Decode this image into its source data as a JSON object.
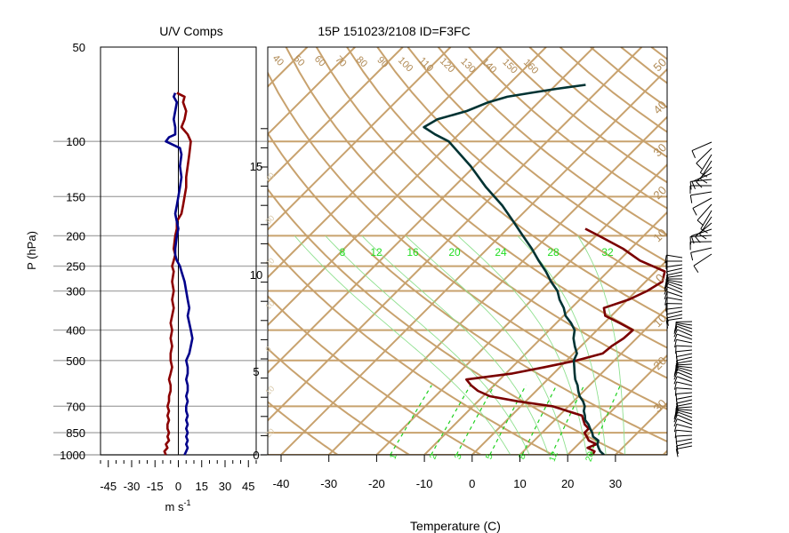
{
  "chart_data": [
    {
      "type": "line",
      "title": "U/V Comps",
      "ylabel": "P (hPa)",
      "xlabel": "m s",
      "xlabel_superscript": "-1",
      "y_scale": "log",
      "ylim": [
        1000,
        50
      ],
      "xlim": [
        -50,
        50
      ],
      "y_ticks": [
        50,
        100,
        150,
        200,
        250,
        300,
        400,
        500,
        700,
        850,
        1000
      ],
      "x_ticks": [
        -45,
        -30,
        -15,
        0,
        15,
        30,
        45
      ],
      "grid": "horizontal lines at labeled pressure levels",
      "series": [
        {
          "color": "#8b0000",
          "points": [
            [
              1000,
              -8
            ],
            [
              975,
              -9
            ],
            [
              950,
              -7
            ],
            [
              925,
              -8
            ],
            [
              900,
              -6
            ],
            [
              875,
              -7
            ],
            [
              850,
              -6
            ],
            [
              825,
              -7
            ],
            [
              800,
              -7
            ],
            [
              775,
              -6
            ],
            [
              750,
              -7
            ],
            [
              725,
              -6
            ],
            [
              700,
              -7
            ],
            [
              675,
              -6
            ],
            [
              650,
              -6
            ],
            [
              625,
              -5
            ],
            [
              600,
              -5
            ],
            [
              575,
              -6
            ],
            [
              550,
              -5
            ],
            [
              525,
              -4
            ],
            [
              500,
              -5
            ],
            [
              475,
              -5
            ],
            [
              450,
              -4
            ],
            [
              425,
              -5
            ],
            [
              400,
              -4
            ],
            [
              380,
              -5
            ],
            [
              360,
              -4
            ],
            [
              340,
              -3
            ],
            [
              320,
              -4
            ],
            [
              300,
              -3
            ],
            [
              280,
              -4
            ],
            [
              260,
              -3
            ],
            [
              250,
              -4
            ],
            [
              240,
              -3
            ],
            [
              230,
              -2
            ],
            [
              220,
              -3
            ],
            [
              200,
              -2
            ],
            [
              190,
              -1
            ],
            [
              180,
              -1
            ],
            [
              170,
              2
            ],
            [
              160,
              3
            ],
            [
              150,
              4
            ],
            [
              140,
              5
            ],
            [
              130,
              5
            ],
            [
              120,
              6
            ],
            [
              110,
              7
            ],
            [
              100,
              8
            ],
            [
              95,
              6
            ],
            [
              90,
              2
            ],
            [
              85,
              4
            ],
            [
              80,
              5
            ],
            [
              75,
              3
            ],
            [
              72,
              4
            ],
            [
              70,
              -1
            ]
          ]
        },
        {
          "color": "#00008b",
          "points": [
            [
              1000,
              4
            ],
            [
              975,
              5
            ],
            [
              950,
              6
            ],
            [
              925,
              5
            ],
            [
              900,
              6
            ],
            [
              875,
              5
            ],
            [
              850,
              6
            ],
            [
              825,
              5
            ],
            [
              800,
              6
            ],
            [
              775,
              5
            ],
            [
              750,
              6
            ],
            [
              725,
              5
            ],
            [
              700,
              5
            ],
            [
              675,
              6
            ],
            [
              650,
              5
            ],
            [
              625,
              6
            ],
            [
              600,
              6
            ],
            [
              575,
              5
            ],
            [
              550,
              6
            ],
            [
              525,
              6
            ],
            [
              500,
              5
            ],
            [
              475,
              7
            ],
            [
              450,
              8
            ],
            [
              425,
              9
            ],
            [
              400,
              8
            ],
            [
              380,
              7
            ],
            [
              360,
              6
            ],
            [
              340,
              7
            ],
            [
              320,
              6
            ],
            [
              300,
              5
            ],
            [
              280,
              4
            ],
            [
              260,
              2
            ],
            [
              250,
              1
            ],
            [
              240,
              -1
            ],
            [
              230,
              -2
            ],
            [
              220,
              -2
            ],
            [
              200,
              -1
            ],
            [
              190,
              0
            ],
            [
              180,
              -1
            ],
            [
              170,
              -2
            ],
            [
              160,
              -1
            ],
            [
              150,
              0
            ],
            [
              140,
              1
            ],
            [
              130,
              2
            ],
            [
              120,
              1
            ],
            [
              110,
              2
            ],
            [
              105,
              1
            ],
            [
              100,
              -8
            ],
            [
              97,
              -6
            ],
            [
              95,
              -2
            ],
            [
              90,
              -2
            ],
            [
              85,
              -3
            ],
            [
              80,
              -2
            ],
            [
              75,
              -1
            ],
            [
              72,
              -3
            ],
            [
              70,
              -2
            ]
          ]
        }
      ]
    },
    {
      "type": "line",
      "title": "15P 151023/2108 ID=F3FC",
      "xlabel": "Temperature (C)",
      "x_scale": "skew-T / log-p",
      "xlim": [
        -45,
        40
      ],
      "x_ticks": [
        -40,
        -30,
        -20,
        -10,
        0,
        10,
        20,
        30
      ],
      "height_ticks_km": [
        0,
        5,
        10,
        15
      ],
      "isotherm_labels": [
        "40",
        "50",
        "60",
        "70",
        "80",
        "90",
        "100",
        "110",
        "120",
        "130",
        "140",
        "150",
        "160"
      ],
      "isotherm_values": [
        -40,
        -50,
        -60,
        -70,
        -80,
        -90,
        -100,
        -110,
        -120,
        -130,
        -140,
        -150,
        -160
      ],
      "mixing_ratio_labels": [
        "8",
        "12",
        "16",
        "20",
        "24",
        "28",
        "32"
      ],
      "mixing_ratio_values": [
        8,
        12,
        16,
        20,
        24,
        28,
        32
      ],
      "bottom_labels": [
        "1",
        "2",
        "3",
        "5",
        "8",
        "12",
        "20"
      ],
      "bottom_label_values": [
        1,
        2,
        3,
        5,
        8,
        12,
        20
      ],
      "right_labels": [
        "50",
        "40",
        "30",
        "20",
        "10",
        "0",
        "10",
        "20",
        "30"
      ],
      "left_faint_labels": [
        "40",
        "30",
        "20",
        "10",
        "0",
        "10",
        "20"
      ],
      "series": [
        {
          "name_hint": "dewpoint",
          "color": "#7a0000",
          "points": [
            [
              1000,
              25.2
            ],
            [
              975,
              24.9
            ],
            [
              950,
              22.7
            ],
            [
              925,
              23.8
            ],
            [
              900,
              21.4
            ],
            [
              875,
              20.2
            ],
            [
              850,
              18.9
            ],
            [
              825,
              18.9
            ],
            [
              800,
              17.2
            ],
            [
              775,
              16.0
            ],
            [
              750,
              14.8
            ],
            [
              725,
              10.8
            ],
            [
              700,
              6.7
            ],
            [
              675,
              -1.6
            ],
            [
              650,
              -8.6
            ],
            [
              625,
              -12.2
            ],
            [
              600,
              -14.8
            ],
            [
              575,
              -17.0
            ],
            [
              550,
              -8.6
            ],
            [
              525,
              -3.2
            ],
            [
              500,
              2.1
            ],
            [
              475,
              6.1
            ],
            [
              450,
              6.4
            ],
            [
              425,
              7.3
            ],
            [
              400,
              7.5
            ],
            [
              380,
              3.3
            ],
            [
              360,
              -1.3
            ],
            [
              340,
              -3.2
            ],
            [
              320,
              0.2
            ],
            [
              300,
              2.3
            ],
            [
              280,
              3.5
            ],
            [
              260,
              1.9
            ],
            [
              240,
              -5.6
            ],
            [
              220,
              -11.6
            ],
            [
              200,
              -19.4
            ],
            [
              190,
              -23.7
            ]
          ]
        },
        {
          "name_hint": "temperature",
          "color": "#003333",
          "points": [
            [
              1000,
              27.6
            ],
            [
              975,
              26.1
            ],
            [
              950,
              25.0
            ],
            [
              925,
              24.0
            ],
            [
              900,
              23.4
            ],
            [
              875,
              21.5
            ],
            [
              850,
              20.5
            ],
            [
              825,
              19.2
            ],
            [
              800,
              18.0
            ],
            [
              775,
              16.4
            ],
            [
              750,
              15.4
            ],
            [
              725,
              14.2
            ],
            [
              700,
              13.4
            ],
            [
              675,
              12.0
            ],
            [
              650,
              10.2
            ],
            [
              625,
              8.8
            ],
            [
              600,
              7.5
            ],
            [
              575,
              5.8
            ],
            [
              550,
              4.4
            ],
            [
              525,
              3.0
            ],
            [
              500,
              1.5
            ],
            [
              475,
              0.7
            ],
            [
              450,
              -1.3
            ],
            [
              425,
              -3.2
            ],
            [
              400,
              -4.7
            ],
            [
              380,
              -6.9
            ],
            [
              360,
              -9.6
            ],
            [
              340,
              -11.6
            ],
            [
              320,
              -14.2
            ],
            [
              300,
              -16.5
            ],
            [
              280,
              -19.8
            ],
            [
              260,
              -23.0
            ],
            [
              240,
              -26.8
            ],
            [
              220,
              -30.7
            ],
            [
              200,
              -35.3
            ],
            [
              180,
              -40.3
            ],
            [
              160,
              -46.0
            ],
            [
              140,
              -53.2
            ],
            [
              120,
              -60.8
            ],
            [
              100,
              -70.6
            ],
            [
              95,
              -74.9
            ],
            [
              90,
              -78.8
            ],
            [
              85,
              -77.6
            ],
            [
              80,
              -73.2
            ],
            [
              75,
              -70.5
            ],
            [
              72,
              -67.7
            ],
            [
              70,
              -63.7
            ],
            [
              68,
              -59.2
            ],
            [
              66,
              -53.8
            ]
          ]
        }
      ]
    }
  ]
}
